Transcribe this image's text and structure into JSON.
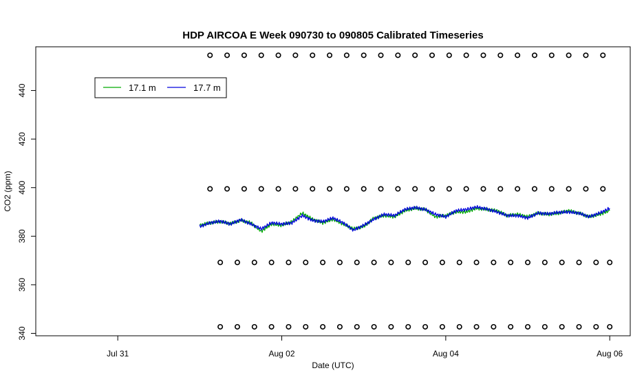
{
  "chart_data": {
    "type": "line",
    "title": "HDP AIRCOA E  Week 090730 to 090805  Calibrated Timeseries",
    "xlabel": "Date (UTC)",
    "ylabel": "CO2 (ppm)",
    "xlim": [
      "2009-07-30T00:00",
      "2009-08-06T06:00"
    ],
    "ylim": [
      339,
      458
    ],
    "x_ticks": [
      {
        "value": "2009-07-31T00:00",
        "label": "Jul 31"
      },
      {
        "value": "2009-08-02T00:00",
        "label": "Aug 02"
      },
      {
        "value": "2009-08-04T00:00",
        "label": "Aug 04"
      },
      {
        "value": "2009-08-06T00:00",
        "label": "Aug 06"
      }
    ],
    "y_ticks": [
      340,
      360,
      380,
      400,
      420,
      440
    ],
    "legend": {
      "position": "top-left",
      "entries": [
        "17.1 m",
        "17.7 m"
      ]
    },
    "series": [
      {
        "name": "17.1 m",
        "color": "#00aa00",
        "x": [
          "2009-08-01T00:00",
          "2009-08-01T03:00",
          "2009-08-01T06:00",
          "2009-08-01T09:00",
          "2009-08-01T12:00",
          "2009-08-01T15:00",
          "2009-08-01T18:00",
          "2009-08-01T21:00",
          "2009-08-02T00:00",
          "2009-08-02T03:00",
          "2009-08-02T06:00",
          "2009-08-02T09:00",
          "2009-08-02T12:00",
          "2009-08-02T15:00",
          "2009-08-02T18:00",
          "2009-08-02T21:00",
          "2009-08-03T00:00",
          "2009-08-03T03:00",
          "2009-08-03T06:00",
          "2009-08-03T09:00",
          "2009-08-03T12:00",
          "2009-08-03T15:00",
          "2009-08-03T18:00",
          "2009-08-03T21:00",
          "2009-08-04T00:00",
          "2009-08-04T03:00",
          "2009-08-04T06:00",
          "2009-08-04T09:00",
          "2009-08-04T12:00",
          "2009-08-04T15:00",
          "2009-08-04T18:00",
          "2009-08-04T21:00",
          "2009-08-05T00:00",
          "2009-08-05T03:00",
          "2009-08-05T06:00",
          "2009-08-05T09:00",
          "2009-08-05T12:00",
          "2009-08-05T15:00",
          "2009-08-05T18:00",
          "2009-08-05T21:00",
          "2009-08-06T00:00"
        ],
        "values": [
          384.5,
          385.5,
          386.0,
          385.2,
          386.5,
          385.5,
          382.0,
          385.0,
          384.5,
          386.0,
          389.5,
          387.0,
          385.5,
          387.0,
          385.0,
          383.0,
          384.0,
          387.5,
          388.5,
          388.0,
          390.5,
          391.5,
          391.0,
          388.0,
          388.5,
          390.0,
          390.0,
          391.5,
          391.0,
          390.5,
          388.5,
          389.0,
          388.0,
          389.5,
          389.0,
          389.5,
          390.5,
          389.5,
          388.0,
          389.0,
          390.5
        ]
      },
      {
        "name": "17.7 m",
        "color": "#0000dd",
        "x": [
          "2009-08-01T00:00",
          "2009-08-01T03:00",
          "2009-08-01T06:00",
          "2009-08-01T09:00",
          "2009-08-01T12:00",
          "2009-08-01T15:00",
          "2009-08-01T18:00",
          "2009-08-01T21:00",
          "2009-08-02T00:00",
          "2009-08-02T03:00",
          "2009-08-02T06:00",
          "2009-08-02T09:00",
          "2009-08-02T12:00",
          "2009-08-02T15:00",
          "2009-08-02T18:00",
          "2009-08-02T21:00",
          "2009-08-03T00:00",
          "2009-08-03T03:00",
          "2009-08-03T06:00",
          "2009-08-03T09:00",
          "2009-08-03T12:00",
          "2009-08-03T15:00",
          "2009-08-03T18:00",
          "2009-08-03T21:00",
          "2009-08-04T00:00",
          "2009-08-04T03:00",
          "2009-08-04T06:00",
          "2009-08-04T09:00",
          "2009-08-04T12:00",
          "2009-08-04T15:00",
          "2009-08-04T18:00",
          "2009-08-04T21:00",
          "2009-08-05T00:00",
          "2009-08-05T03:00",
          "2009-08-05T06:00",
          "2009-08-05T09:00",
          "2009-08-05T12:00",
          "2009-08-05T15:00",
          "2009-08-05T18:00",
          "2009-08-05T21:00",
          "2009-08-06T00:00"
        ],
        "values": [
          384.0,
          385.5,
          386.2,
          385.0,
          386.8,
          385.0,
          383.0,
          385.5,
          385.0,
          385.5,
          388.5,
          386.5,
          386.0,
          387.5,
          385.5,
          382.5,
          384.5,
          387.0,
          389.0,
          388.5,
          391.0,
          391.8,
          391.0,
          389.0,
          388.0,
          390.5,
          391.0,
          392.0,
          391.2,
          390.0,
          388.5,
          388.5,
          387.5,
          389.5,
          389.2,
          389.8,
          390.0,
          389.5,
          388.0,
          389.5,
          391.5
        ]
      }
    ],
    "markers": {
      "style": "open-circle",
      "color": "#000000",
      "rows": [
        {
          "y": 454.5,
          "x": [
            "2009-08-01T03:00",
            "2009-08-01T08:00",
            "2009-08-01T13:00",
            "2009-08-01T18:00",
            "2009-08-01T23:00",
            "2009-08-02T04:00",
            "2009-08-02T09:00",
            "2009-08-02T14:00",
            "2009-08-02T19:00",
            "2009-08-03T00:00",
            "2009-08-03T05:00",
            "2009-08-03T10:00",
            "2009-08-03T15:00",
            "2009-08-03T20:00",
            "2009-08-04T01:00",
            "2009-08-04T06:00",
            "2009-08-04T11:00",
            "2009-08-04T16:00",
            "2009-08-04T21:00",
            "2009-08-05T02:00",
            "2009-08-05T07:00",
            "2009-08-05T12:00",
            "2009-08-05T17:00",
            "2009-08-05T22:00"
          ]
        },
        {
          "y": 399.5,
          "x": [
            "2009-08-01T03:00",
            "2009-08-01T08:00",
            "2009-08-01T13:00",
            "2009-08-01T18:00",
            "2009-08-01T23:00",
            "2009-08-02T04:00",
            "2009-08-02T09:00",
            "2009-08-02T14:00",
            "2009-08-02T19:00",
            "2009-08-03T00:00",
            "2009-08-03T05:00",
            "2009-08-03T10:00",
            "2009-08-03T15:00",
            "2009-08-03T20:00",
            "2009-08-04T01:00",
            "2009-08-04T06:00",
            "2009-08-04T11:00",
            "2009-08-04T16:00",
            "2009-08-04T21:00",
            "2009-08-05T02:00",
            "2009-08-05T07:00",
            "2009-08-05T12:00",
            "2009-08-05T17:00",
            "2009-08-05T22:00"
          ]
        },
        {
          "y": 369.2,
          "x": [
            "2009-08-01T06:00",
            "2009-08-01T11:00",
            "2009-08-01T16:00",
            "2009-08-01T21:00",
            "2009-08-02T02:00",
            "2009-08-02T07:00",
            "2009-08-02T12:00",
            "2009-08-02T17:00",
            "2009-08-02T22:00",
            "2009-08-03T03:00",
            "2009-08-03T08:00",
            "2009-08-03T13:00",
            "2009-08-03T18:00",
            "2009-08-03T23:00",
            "2009-08-04T04:00",
            "2009-08-04T09:00",
            "2009-08-04T14:00",
            "2009-08-04T19:00",
            "2009-08-05T00:00",
            "2009-08-05T05:00",
            "2009-08-05T10:00",
            "2009-08-05T15:00",
            "2009-08-05T20:00",
            "2009-08-06T00:00"
          ]
        },
        {
          "y": 342.7,
          "x": [
            "2009-08-01T06:00",
            "2009-08-01T11:00",
            "2009-08-01T16:00",
            "2009-08-01T21:00",
            "2009-08-02T02:00",
            "2009-08-02T07:00",
            "2009-08-02T12:00",
            "2009-08-02T17:00",
            "2009-08-02T22:00",
            "2009-08-03T03:00",
            "2009-08-03T08:00",
            "2009-08-03T13:00",
            "2009-08-03T18:00",
            "2009-08-03T23:00",
            "2009-08-04T04:00",
            "2009-08-04T09:00",
            "2009-08-04T14:00",
            "2009-08-04T19:00",
            "2009-08-05T00:00",
            "2009-08-05T05:00",
            "2009-08-05T10:00",
            "2009-08-05T15:00",
            "2009-08-05T20:00",
            "2009-08-06T00:00"
          ]
        }
      ]
    }
  }
}
